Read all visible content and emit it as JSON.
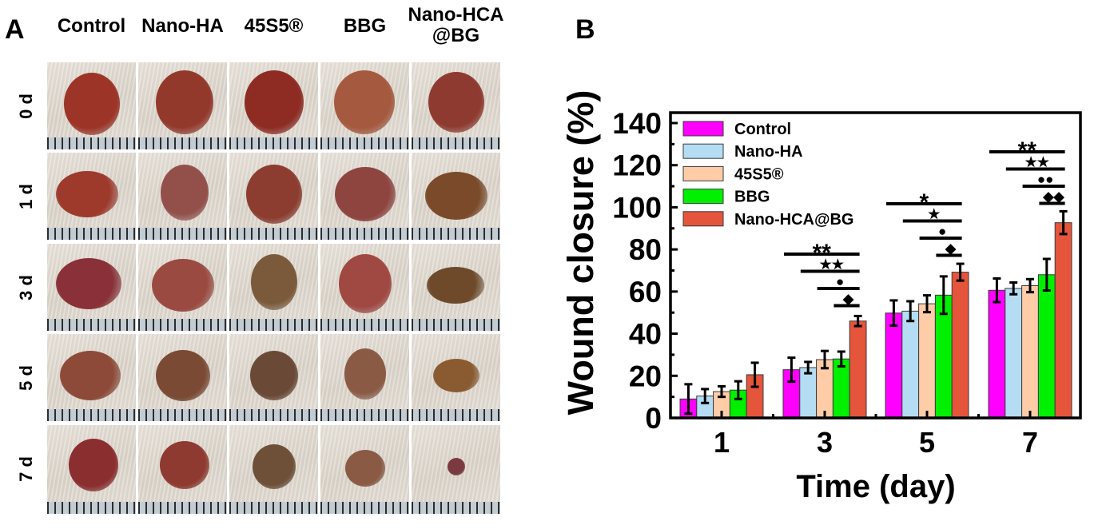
{
  "panel_a": {
    "letter": "A",
    "columns": [
      "Control",
      "Nano-HA",
      "45S5®",
      "BBG",
      "Nano-HCA\n@BG"
    ],
    "columns_display": [
      [
        "Control"
      ],
      [
        "Nano-HA"
      ],
      [
        "45S5®"
      ],
      [
        "BBG"
      ],
      [
        "Nano-HCA",
        "@BG"
      ]
    ],
    "rows": [
      "0 d",
      "1 d",
      "3 d",
      "5 d",
      "7 d"
    ],
    "photo_description": "Wound photographs of each group at each time point with ruler scale"
  },
  "panel_b": {
    "letter": "B"
  },
  "chart_data": {
    "type": "bar",
    "title": "",
    "xlabel": "Time (day)",
    "ylabel": "Wound closure (%)",
    "categories": [
      "1",
      "3",
      "5",
      "7"
    ],
    "ylim": [
      0,
      140
    ],
    "yticks": [
      0,
      20,
      40,
      60,
      80,
      100,
      120,
      140
    ],
    "grid": false,
    "legend_position": "top-left",
    "series": [
      {
        "name": "Control",
        "color": "#FF00FF",
        "values": [
          9.0,
          22.9,
          49.8,
          60.6
        ],
        "errors": [
          7.0,
          5.7,
          6.0,
          5.6
        ]
      },
      {
        "name": "Nano-HA",
        "color": "#B4DDF4",
        "values": [
          10.4,
          23.9,
          50.7,
          61.5
        ],
        "errors": [
          3.3,
          2.7,
          4.7,
          2.8
        ]
      },
      {
        "name": "45S5®",
        "color": "#FFCCA8",
        "values": [
          12.5,
          27.7,
          54.2,
          62.8
        ],
        "errors": [
          2.5,
          4.1,
          4.0,
          3.1
        ]
      },
      {
        "name": "BBG",
        "color": "#00F000",
        "values": [
          13.2,
          28.0,
          58.3,
          68.0
        ],
        "errors": [
          4.2,
          3.5,
          8.9,
          7.5
        ]
      },
      {
        "name": "Nano-HCA@BG",
        "color": "#E5553B",
        "values": [
          20.5,
          46.0,
          69.2,
          92.7
        ],
        "errors": [
          5.7,
          2.4,
          4.0,
          5.4
        ]
      }
    ],
    "significance": [
      {
        "category": "3",
        "marks": [
          {
            "vs": "Control",
            "symbol": "**"
          },
          {
            "vs": "Nano-HA",
            "symbol": "★★"
          },
          {
            "vs": "45S5®",
            "symbol": "●"
          },
          {
            "vs": "BBG",
            "symbol": "◆"
          }
        ]
      },
      {
        "category": "5",
        "marks": [
          {
            "vs": "Control",
            "symbol": "*"
          },
          {
            "vs": "Nano-HA",
            "symbol": "★"
          },
          {
            "vs": "45S5®",
            "symbol": "●"
          },
          {
            "vs": "BBG",
            "symbol": "◆"
          }
        ]
      },
      {
        "category": "7",
        "marks": [
          {
            "vs": "Control",
            "symbol": "**"
          },
          {
            "vs": "Nano-HA",
            "symbol": "★★"
          },
          {
            "vs": "45S5®",
            "symbol": "●●"
          },
          {
            "vs": "BBG",
            "symbol": "◆◆"
          }
        ]
      }
    ]
  }
}
